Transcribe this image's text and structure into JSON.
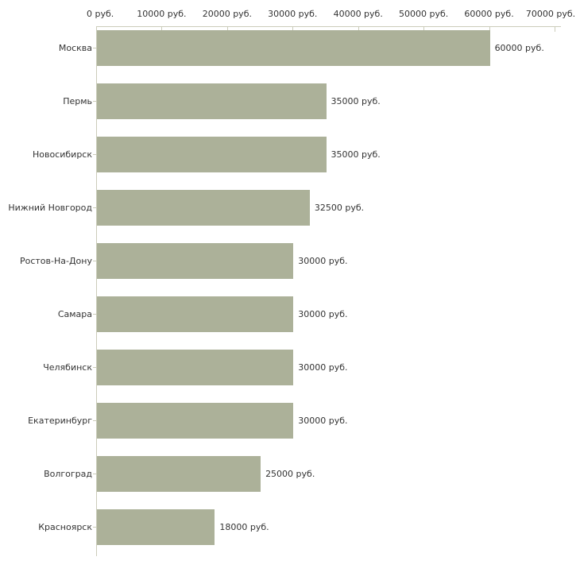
{
  "chart_data": {
    "type": "bar",
    "orientation": "horizontal",
    "title": "",
    "xlabel": "",
    "ylabel": "",
    "categories": [
      "Москва",
      "Пермь",
      "Новосибирск",
      "Нижний Новгород",
      "Ростов-На-Дону",
      "Самара",
      "Челябинск",
      "Екатеринбург",
      "Волгоград",
      "Красноярск"
    ],
    "values": [
      60000,
      35000,
      35000,
      32500,
      30000,
      30000,
      30000,
      30000,
      25000,
      18000
    ],
    "value_labels": [
      "60000 руб.",
      "35000 руб.",
      "35000 руб.",
      "32500 руб.",
      "30000 руб.",
      "30000 руб.",
      "30000 руб.",
      "30000 руб.",
      "25000 руб.",
      "18000 руб."
    ],
    "x_ticks": [
      0,
      10000,
      20000,
      30000,
      40000,
      50000,
      60000,
      70000
    ],
    "x_tick_labels": [
      "0 руб.",
      "10000 руб.",
      "20000 руб.",
      "30000 руб.",
      "40000 руб.",
      "50000 руб.",
      "60000 руб.",
      "70000 руб."
    ],
    "xlim": [
      0,
      70000
    ],
    "grid": false,
    "legend": false,
    "colors": {
      "bar": "#acb199",
      "axis": "#cbccba",
      "text": "#333333",
      "background": "#ffffff"
    }
  }
}
